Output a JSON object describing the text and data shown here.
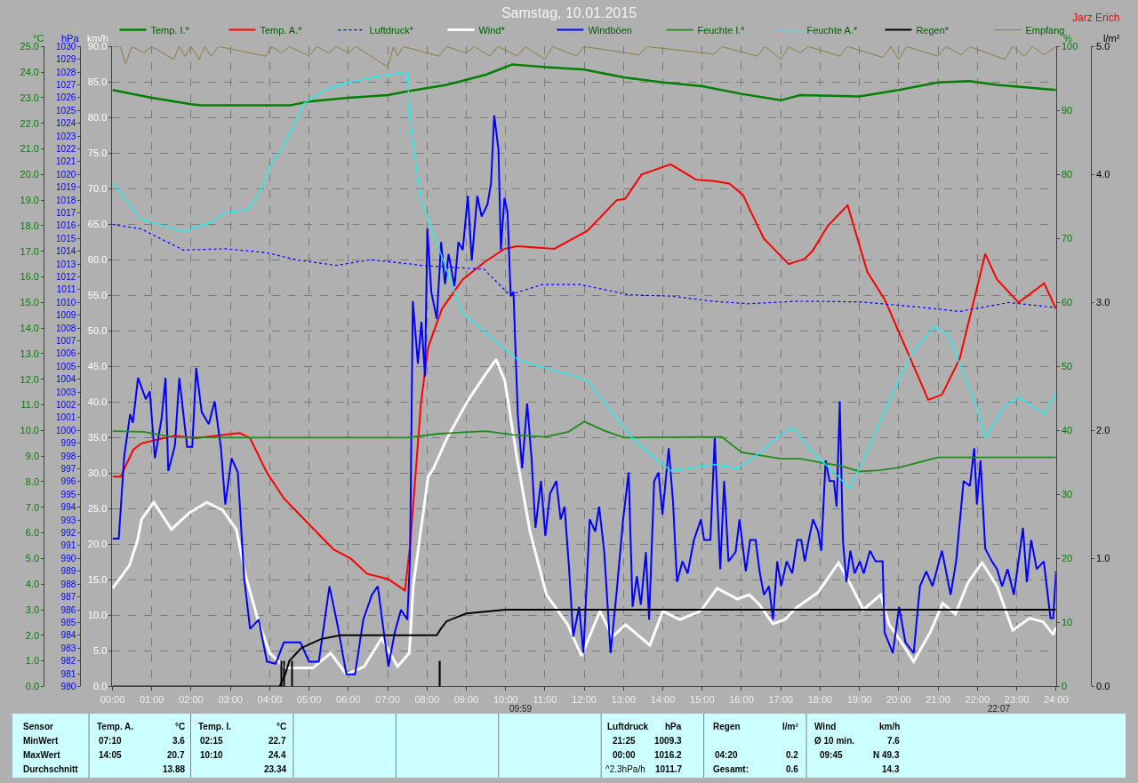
{
  "chart_data": [
    {
      "type": "line",
      "title": "Samstag, 10.01.2015",
      "xlim": [
        0,
        24
      ],
      "xticks": [
        {
          "value": 0,
          "label": "00:00"
        },
        {
          "value": 1,
          "label": "01:00"
        },
        {
          "value": 2,
          "label": "02:00"
        },
        {
          "value": 3,
          "label": "03:00"
        },
        {
          "value": 4,
          "label": "04:00"
        },
        {
          "value": 5,
          "label": "05:00"
        },
        {
          "value": 6,
          "label": "06:00"
        },
        {
          "value": 7,
          "label": "07:00"
        },
        {
          "value": 8,
          "label": "08:00"
        },
        {
          "value": 9,
          "label": "09:00"
        },
        {
          "value": 10,
          "label": "10:00"
        },
        {
          "value": 11,
          "label": "11:00"
        },
        {
          "value": 12,
          "label": "12:00"
        },
        {
          "value": 13,
          "label": "13:00"
        },
        {
          "value": 14,
          "label": "14:00"
        },
        {
          "value": 15,
          "label": "15:00"
        },
        {
          "value": 16,
          "label": "16:00"
        },
        {
          "value": 17,
          "label": "17:00"
        },
        {
          "value": 18,
          "label": "18:00"
        },
        {
          "value": 19,
          "label": "19:00"
        },
        {
          "value": 20,
          "label": "20:00"
        },
        {
          "value": 21,
          "label": "21:00"
        },
        {
          "value": 22,
          "label": "22:00"
        },
        {
          "value": 23,
          "label": "23:00"
        },
        {
          "value": 24,
          "label": "24:00"
        }
      ],
      "ylabel": "°C",
      "ylim": [
        0,
        25
      ],
      "yticks": [
        {
          "value": 0,
          "label": "0.0"
        },
        {
          "value": 1,
          "label": "1.0"
        },
        {
          "value": 2,
          "label": "2.0"
        },
        {
          "value": 3,
          "label": "3.0"
        },
        {
          "value": 4,
          "label": "4.0"
        },
        {
          "value": 5,
          "label": "5.0"
        },
        {
          "value": 6,
          "label": "6.0"
        },
        {
          "value": 7,
          "label": "7.0"
        },
        {
          "value": 8,
          "label": "8.0"
        },
        {
          "value": 9,
          "label": "9.0"
        },
        {
          "value": 10,
          "label": "10.0"
        },
        {
          "value": 11,
          "label": "11.0"
        },
        {
          "value": 12,
          "label": "12.0"
        },
        {
          "value": 13,
          "label": "13.0"
        },
        {
          "value": 14,
          "label": "14.0"
        },
        {
          "value": 15,
          "label": "15.0"
        },
        {
          "value": 16,
          "label": "16.0"
        },
        {
          "value": 17,
          "label": "17.0"
        },
        {
          "value": 18,
          "label": "18.0"
        },
        {
          "value": 19,
          "label": "19.0"
        },
        {
          "value": 20,
          "label": "20.0"
        },
        {
          "value": 21,
          "label": "21.0"
        },
        {
          "value": 22,
          "label": "22.0"
        },
        {
          "value": 23,
          "label": "23.0"
        },
        {
          "value": 24,
          "label": "24.0"
        },
        {
          "value": 25,
          "label": "25.0"
        }
      ],
      "y2label": "hPa",
      "y2lim": [
        980,
        1030
      ],
      "y2ticks": [
        980,
        981,
        982,
        983,
        984,
        985,
        986,
        987,
        988,
        989,
        990,
        991,
        992,
        993,
        994,
        995,
        996,
        997,
        998,
        999,
        1000,
        1001,
        1002,
        1003,
        1004,
        1005,
        1006,
        1007,
        1008,
        1009,
        1010,
        1011,
        1012,
        1013,
        1014,
        1015,
        1016,
        1017,
        1018,
        1019,
        1020,
        1021,
        1022,
        1023,
        1024,
        1025,
        1026,
        1027,
        1028,
        1029,
        1030
      ],
      "y3label": "km/h",
      "y3lim": [
        0,
        90
      ],
      "y3ticks": [
        {
          "value": 0,
          "label": "0.0"
        },
        {
          "value": 5,
          "label": "5.0"
        },
        {
          "value": 10,
          "label": "10.0"
        },
        {
          "value": 15,
          "label": "15.0"
        },
        {
          "value": 20,
          "label": "20.0"
        },
        {
          "value": 25,
          "label": "25.0"
        },
        {
          "value": 30,
          "label": "30.0"
        },
        {
          "value": 35,
          "label": "35.0"
        },
        {
          "value": 40,
          "label": "40.0"
        },
        {
          "value": 45,
          "label": "45.0"
        },
        {
          "value": 50,
          "label": "50.0"
        },
        {
          "value": 55,
          "label": "55.0"
        },
        {
          "value": 60,
          "label": "60.0"
        },
        {
          "value": 65,
          "label": "65.0"
        },
        {
          "value": 70,
          "label": "70.0"
        },
        {
          "value": 75,
          "label": "75.0"
        },
        {
          "value": 80,
          "label": "80.0"
        },
        {
          "value": 85,
          "label": "85.0"
        },
        {
          "value": 90,
          "label": "90.0"
        }
      ],
      "grid": true,
      "legend": "top",
      "series": [
        {
          "name": "Temp. I.*",
          "color": "#008000",
          "x": [
            0,
            1,
            2,
            2.25,
            3,
            4.5,
            5,
            6,
            7,
            7.5,
            8.5,
            9.5,
            10.17,
            11,
            12,
            13,
            14,
            15,
            16,
            17,
            17.5,
            19,
            20,
            21,
            21.8,
            22.5,
            24
          ],
          "values": [
            23.3,
            23.0,
            22.75,
            22.7,
            22.7,
            22.7,
            22.85,
            23.0,
            23.1,
            23.25,
            23.5,
            23.9,
            24.3,
            24.2,
            24.1,
            23.8,
            23.6,
            23.45,
            23.15,
            22.9,
            23.1,
            23.05,
            23.3,
            23.6,
            23.65,
            23.5,
            23.3
          ]
        },
        {
          "name": "Temp. A.*",
          "color": "#ff0000",
          "x": [
            0,
            0.21,
            0.53,
            0.74,
            1.16,
            1.59,
            2.12,
            2.65,
            3.24,
            3.5,
            3.93,
            4.36,
            4.99,
            5.63,
            6.06,
            6.48,
            7.01,
            7.44,
            7.57,
            7.85,
            8.03,
            8.38,
            8.91,
            9.44,
            9.97,
            10.3,
            11.24,
            12.08,
            12.83,
            13.04,
            13.46,
            14.2,
            14.84,
            15.26,
            15.69,
            16.04,
            16.22,
            16.57,
            17.2,
            17.6,
            17.8,
            18.2,
            18.7,
            19.2,
            19.65,
            20.75,
            21.1,
            21.55,
            22.2,
            22.5,
            23.05,
            23.7,
            24
          ],
          "values": [
            8.2,
            8.2,
            9.25,
            9.5,
            9.65,
            9.8,
            9.7,
            9.8,
            9.9,
            9.7,
            8.35,
            7.35,
            6.35,
            5.35,
            5.0,
            4.4,
            4.2,
            3.75,
            5.5,
            11.1,
            13.25,
            14.75,
            15.9,
            16.55,
            17.1,
            17.2,
            17.1,
            17.8,
            19.0,
            19.05,
            20.0,
            20.4,
            19.8,
            19.75,
            19.65,
            19.2,
            18.6,
            17.5,
            16.5,
            16.7,
            17.0,
            18.0,
            18.8,
            16.2,
            15.1,
            11.2,
            11.4,
            12.8,
            16.9,
            15.9,
            15.0,
            15.75,
            14.75
          ]
        },
        {
          "name": "Luftdruck*",
          "color": "#0000ff",
          "axis": "y2",
          "line_style": "dotted",
          "x": [
            0,
            0.73,
            1.8,
            2.85,
            3.9,
            4.75,
            5.7,
            6.55,
            7.6,
            7.85,
            9.45,
            10.1,
            10.93,
            11.9,
            13.15,
            14.2,
            15.26,
            16.2,
            17.4,
            19.0,
            20.5,
            21.55,
            22.8,
            24
          ],
          "values": [
            1016.1,
            1015.75,
            1014.1,
            1014.2,
            1013.9,
            1013.3,
            1012.9,
            1013.35,
            1013.0,
            1012.9,
            1012.6,
            1010.6,
            1011.4,
            1011.4,
            1010.6,
            1010.5,
            1010.1,
            1009.9,
            1010.1,
            1010.05,
            1009.65,
            1009.3,
            1010.0,
            1009.6
          ]
        },
        {
          "name": "Wind*",
          "color": "#ffffff",
          "axis": "y3",
          "x": [
            0,
            0.43,
            0.64,
            0.74,
            1.05,
            1.25,
            1.5,
            1.95,
            2.4,
            2.8,
            3.15,
            3.4,
            3.7,
            4.0,
            4.4,
            5.1,
            5.55,
            5.95,
            6.4,
            6.85,
            7.25,
            7.55,
            7.65,
            8.03,
            8.17,
            8.5,
            9.03,
            9.45,
            9.76,
            9.98,
            10.3,
            10.62,
            11.04,
            11.57,
            11.93,
            12.4,
            12.72,
            13.05,
            13.67,
            14.0,
            14.43,
            14.96,
            15.38,
            15.9,
            16.2,
            16.46,
            16.8,
            17.1,
            17.4,
            17.94,
            18.47,
            18.8,
            19.1,
            19.54,
            19.75,
            20.07,
            20.38,
            20.8,
            21.12,
            21.44,
            21.77,
            22.12,
            22.5,
            22.9,
            23.33,
            23.67,
            23.93,
            24
          ],
          "values": [
            13.8,
            17,
            20.6,
            23.5,
            25.9,
            24.2,
            22.1,
            24.4,
            25.9,
            24.8,
            22.1,
            15.3,
            9.4,
            4.7,
            2.6,
            2.6,
            4.7,
            1.7,
            2.8,
            6.8,
            2.8,
            4.7,
            14.1,
            29.5,
            30.7,
            34.8,
            40.1,
            43.6,
            46.0,
            43.0,
            31.8,
            21.8,
            12.9,
            8.8,
            4.3,
            10.6,
            7.0,
            8.7,
            5.8,
            10.6,
            9.4,
            10.6,
            13.8,
            12.3,
            12.9,
            11.5,
            8.8,
            9.4,
            11.1,
            13.2,
            17.4,
            14.1,
            10.8,
            12.9,
            8.8,
            6.2,
            3.5,
            7.6,
            11.7,
            10.2,
            14.7,
            17.4,
            14.1,
            7.9,
            9.6,
            9.1,
            7.3,
            8.3
          ]
        },
        {
          "name": "Windböen",
          "color": "#0000ff",
          "axis": "y3",
          "x": [
            0,
            0.16,
            0.3,
            0.45,
            0.52,
            0.65,
            0.85,
            0.95,
            1.08,
            1.25,
            1.35,
            1.42,
            1.59,
            1.7,
            1.9,
            2.03,
            2.13,
            2.27,
            2.45,
            2.6,
            2.76,
            2.87,
            3.03,
            3.19,
            3.35,
            3.5,
            3.72,
            3.93,
            4.15,
            4.36,
            4.78,
            5.0,
            5.25,
            5.52,
            5.73,
            5.95,
            6.17,
            6.38,
            6.6,
            6.75,
            6.86,
            7.02,
            7.18,
            7.34,
            7.5,
            7.57,
            7.64,
            7.77,
            7.86,
            7.95,
            8.01,
            8.11,
            8.25,
            8.36,
            8.46,
            8.55,
            8.7,
            8.8,
            8.91,
            9.04,
            9.14,
            9.28,
            9.39,
            9.54,
            9.63,
            9.71,
            9.82,
            9.88,
            9.97,
            10.05,
            10.13,
            10.2,
            10.31,
            10.42,
            10.55,
            10.66,
            10.76,
            10.9,
            11.01,
            11.13,
            11.29,
            11.4,
            11.5,
            11.61,
            11.72,
            11.87,
            11.98,
            12.14,
            12.28,
            12.38,
            12.51,
            12.67,
            12.83,
            12.99,
            13.13,
            13.23,
            13.34,
            13.44,
            13.57,
            13.65,
            13.78,
            13.89,
            13.99,
            14.15,
            14.26,
            14.36,
            14.5,
            14.63,
            14.79,
            14.97,
            15.05,
            15.21,
            15.32,
            15.46,
            15.56,
            15.67,
            15.85,
            15.95,
            16.11,
            16.22,
            16.36,
            16.46,
            16.57,
            16.7,
            16.8,
            16.91,
            17.01,
            17.15,
            17.29,
            17.42,
            17.52,
            17.61,
            17.71,
            17.82,
            17.95,
            18.03,
            18.14,
            18.24,
            18.35,
            18.42,
            18.5,
            18.58,
            18.67,
            18.77,
            18.88,
            19.01,
            19.11,
            19.27,
            19.41,
            19.59,
            19.64,
            19.85,
            20.01,
            20.17,
            20.38,
            20.54,
            20.7,
            20.86,
            21.1,
            21.32,
            21.46,
            21.65,
            21.81,
            21.92,
            21.99,
            22.08,
            22.2,
            22.37,
            22.5,
            22.63,
            22.77,
            22.93,
            23.16,
            23.26,
            23.37,
            23.51,
            23.69,
            23.86,
            23.93,
            24.0
          ],
          "values": [
            20.8,
            20.8,
            32.4,
            38.3,
            37.1,
            43.4,
            40.4,
            41.5,
            32.1,
            37.7,
            43.4,
            30.3,
            33.9,
            43.4,
            33.7,
            33.7,
            44.8,
            38.6,
            36.9,
            40.1,
            33.5,
            25.6,
            32.1,
            30.1,
            15.3,
            8.1,
            9.4,
            3.5,
            3.2,
            6.2,
            6.2,
            3.5,
            3.5,
            14.1,
            8.5,
            1.7,
            1.7,
            9.4,
            12.9,
            14.1,
            9.4,
            2.8,
            7.6,
            10.8,
            9.4,
            18.2,
            54.2,
            45.4,
            51.3,
            43.6,
            64.4,
            55.5,
            51.7,
            62.5,
            56.6,
            60.8,
            56.3,
            62.5,
            61.4,
            69.0,
            59.9,
            69.0,
            66.1,
            67.8,
            70.8,
            80.3,
            75.5,
            61.4,
            68.7,
            66.7,
            54.9,
            55.5,
            38.3,
            30.7,
            39.8,
            32.1,
            22.3,
            28.9,
            21.2,
            27.1,
            28.9,
            23.5,
            25.3,
            17.0,
            7.0,
            11.2,
            4.7,
            23.5,
            21.8,
            25.3,
            18.9,
            4.7,
            13.6,
            23.5,
            30.1,
            11.2,
            15.5,
            11.5,
            18.9,
            9.4,
            28.9,
            30.1,
            24.2,
            33.5,
            25.9,
            14.7,
            17.6,
            15.9,
            20.6,
            23.5,
            20.6,
            20.6,
            35.0,
            16.5,
            28.9,
            17.6,
            18.9,
            23.5,
            16.2,
            20.6,
            20.6,
            16.2,
            12.9,
            14.1,
            9.4,
            17.6,
            14.1,
            17.6,
            15.9,
            20.6,
            20.6,
            17.6,
            20.6,
            23.5,
            21.8,
            19.1,
            31.8,
            28.9,
            28.9,
            25.3,
            40.1,
            20.6,
            14.7,
            19.1,
            15.9,
            17.6,
            15.9,
            19.1,
            17.6,
            17.6,
            7.6,
            4.7,
            11.2,
            6.2,
            4.7,
            14.1,
            16.2,
            14.1,
            19.1,
            12.9,
            17.6,
            28.9,
            28.2,
            33.5,
            25.6,
            31.8,
            19.4,
            17.6,
            16.5,
            14.1,
            16.5,
            12.9,
            22.3,
            14.7,
            20.6,
            16.5,
            17.6,
            9.6,
            9.6,
            16.2
          ]
        }
      ],
      "annotations": [
        "Jarz Erich",
        "09:59",
        "22:07",
        "Sensor",
        "MinWert",
        "MaxWert",
        "Durchschnitt",
        "Temp. A.",
        "°C",
        "07:10",
        "3.6",
        "14:05",
        "20.7",
        "13.88",
        "Temp. I.",
        "°C",
        "02:15",
        "22.7",
        "10:10",
        "24.4",
        "23.34",
        "Luftdruck",
        "hPa",
        "21:25",
        "1009.3",
        "00:00",
        "1016.2",
        "^2.3hPa/h",
        "1011.7",
        "Regen",
        "l/m²",
        "04:20",
        "0.2",
        "Gesamt:",
        "0.6",
        "Wind",
        "km/h",
        "Ø 10 min.",
        "7.6",
        "09:45",
        "N 49.3",
        "14.3"
      ]
    },
    {
      "type": "line",
      "xlim": [
        0,
        24
      ],
      "tick_labels": "y",
      "legend": "top",
      "ylabel": "%",
      "ylim": [
        0,
        100
      ],
      "yticks": [
        0,
        10,
        20,
        30,
        40,
        50,
        60,
        70,
        80,
        90,
        100
      ],
      "y2label": "l/m²",
      "y2lim": [
        0,
        5
      ],
      "y2ticks": [
        {
          "value": 0,
          "label": "0.0"
        },
        {
          "value": 1,
          "label": "1.0"
        },
        {
          "value": 2,
          "label": "2.0"
        },
        {
          "value": 3,
          "label": "3.0"
        },
        {
          "value": 4,
          "label": "4.0"
        },
        {
          "value": 5,
          "label": "5.0"
        }
      ],
      "series": [
        {
          "name": "Feuchte I.*",
          "color": "#1e8c1e",
          "x": [
            0,
            0.8,
            1.5,
            3,
            7.5,
            8.3,
            9.5,
            10.2,
            11,
            11.6,
            12,
            12.5,
            13,
            15.5,
            16,
            17,
            17.5,
            18,
            18.5,
            19,
            19.5,
            20,
            20.5,
            21,
            24
          ],
          "values": [
            39.9,
            39.8,
            39.0,
            38.9,
            38.9,
            39.5,
            39.9,
            39.3,
            39.0,
            39.8,
            41.4,
            40.0,
            38.9,
            39.0,
            36.6,
            35.6,
            35.6,
            35.0,
            34.5,
            33.6,
            33.8,
            34.2,
            35.0,
            35.8,
            35.8
          ]
        },
        {
          "name": "Feuchte A.*",
          "color": "#00ffff",
          "x": [
            0,
            0.73,
            1.8,
            2.5,
            2.85,
            3.4,
            3.7,
            4,
            4.35,
            4.87,
            5.4,
            6,
            6.66,
            7.5,
            7.57,
            7.85,
            8.9,
            10.3,
            12.1,
            12.5,
            13.25,
            14.2,
            15.3,
            15.9,
            16.35,
            17,
            17.3,
            17.75,
            18.15,
            18.75,
            19.1,
            19.55,
            20.3,
            20.9,
            21.25,
            22,
            22.2,
            22.7,
            23.05,
            23.7,
            24
          ],
          "values": [
            78.8,
            73,
            71.1,
            72.5,
            74,
            74.4,
            76.7,
            81.2,
            84.5,
            91.1,
            93.2,
            94.4,
            95.2,
            96,
            88,
            76,
            58.4,
            51.1,
            47.8,
            44.5,
            38.6,
            33.7,
            34.7,
            34.1,
            36.0,
            39.3,
            40.5,
            37.0,
            34.6,
            31.0,
            35.3,
            41.9,
            51.8,
            56.2,
            55.1,
            43.3,
            38.9,
            43.8,
            45.2,
            42.6,
            45.9
          ]
        },
        {
          "name": "Regen*",
          "color": "#000000",
          "axis": "y2",
          "x": [
            0,
            4.25,
            4.4,
            4.5,
            4.8,
            5.3,
            5.8,
            8.25,
            8.35,
            8.5,
            9,
            10,
            24
          ],
          "values": [
            0,
            0,
            0.1,
            0.2,
            0.3,
            0.37,
            0.4,
            0.4,
            0.45,
            0.51,
            0.57,
            0.6,
            0.6
          ]
        },
        {
          "type": "bar",
          "color": "#000000",
          "axis": "y2",
          "x": [
            4.3,
            4.37,
            4.57,
            8.33
          ],
          "values": [
            0.2,
            0.2,
            0.2,
            0.2
          ]
        },
        {
          "name": "Empfang",
          "color": "#808040",
          "x": [
            0,
            0.2,
            0.33,
            0.5,
            0.8,
            1.0,
            1.55,
            1.7,
            1.85,
            2.0,
            2.2,
            2.35,
            2.5,
            2.7,
            3.9,
            4.05,
            4.3,
            4.5,
            5.0,
            5.2,
            5.5,
            5.7,
            6.0,
            6.2,
            7.0,
            7.15,
            7.25,
            7.4,
            8.3,
            8.5,
            9.0,
            9.2,
            9.6,
            9.8,
            10.3,
            10.5,
            11.0,
            11.2,
            11.8,
            12.0,
            13.4,
            13.6,
            15.3,
            15.5,
            16.4,
            16.6,
            17.0,
            17.2,
            17.5,
            17.7,
            18.5,
            18.7,
            19.6,
            19.8,
            20.0,
            20.2,
            21.0,
            21.2,
            21.6,
            21.8,
            22.7,
            22.9,
            23.2,
            23.4,
            23.7,
            24
          ],
          "values": [
            100,
            100,
            97.3,
            100,
            99,
            100,
            98,
            100,
            98.5,
            100,
            98,
            100,
            98.5,
            100,
            98.5,
            100,
            99,
            100,
            98.5,
            100,
            99,
            100,
            99,
            100,
            96.8,
            100,
            98.5,
            100,
            98.5,
            100,
            99,
            100,
            98.5,
            100,
            98.5,
            100,
            98,
            100,
            98.5,
            100,
            98.7,
            100,
            98.8,
            100,
            98.5,
            100,
            98,
            100,
            99,
            100,
            98.5,
            100,
            98.3,
            100,
            98,
            100,
            98.5,
            100,
            98.7,
            100,
            98,
            100,
            98.5,
            100,
            98.7,
            100
          ]
        }
      ]
    }
  ]
}
